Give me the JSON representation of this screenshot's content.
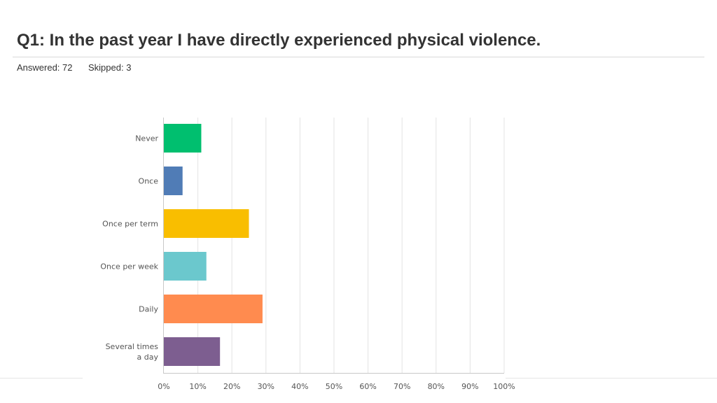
{
  "header": {
    "title": "Q1: In the past year I have directly experienced physical violence.",
    "answered": "Answered: 72",
    "skipped": "Skipped: 3"
  },
  "chart_data": {
    "type": "bar",
    "orientation": "horizontal",
    "title": "Q1: In the past year I have directly experienced physical violence.",
    "xlabel": "",
    "ylabel": "",
    "categories": [
      "Never",
      "Once",
      "Once per term",
      "Once per week",
      "Daily",
      "Several times a day"
    ],
    "category_lines": [
      [
        "Never"
      ],
      [
        "Once"
      ],
      [
        "Once per term"
      ],
      [
        "Once per week"
      ],
      [
        "Daily"
      ],
      [
        "Several times",
        "a day"
      ]
    ],
    "values": [
      11,
      5.5,
      25,
      12.5,
      29,
      16.5
    ],
    "units": "percent",
    "colors": [
      "#00BF6F",
      "#507CB6",
      "#F9BE00",
      "#6BC8CD",
      "#FF8B4F",
      "#7D5E90"
    ],
    "xlim": [
      0,
      100
    ],
    "ticks": [
      "0%",
      "10%",
      "20%",
      "30%",
      "40%",
      "50%",
      "60%",
      "70%",
      "80%",
      "90%",
      "100%"
    ],
    "grid": true,
    "legend": "none"
  }
}
